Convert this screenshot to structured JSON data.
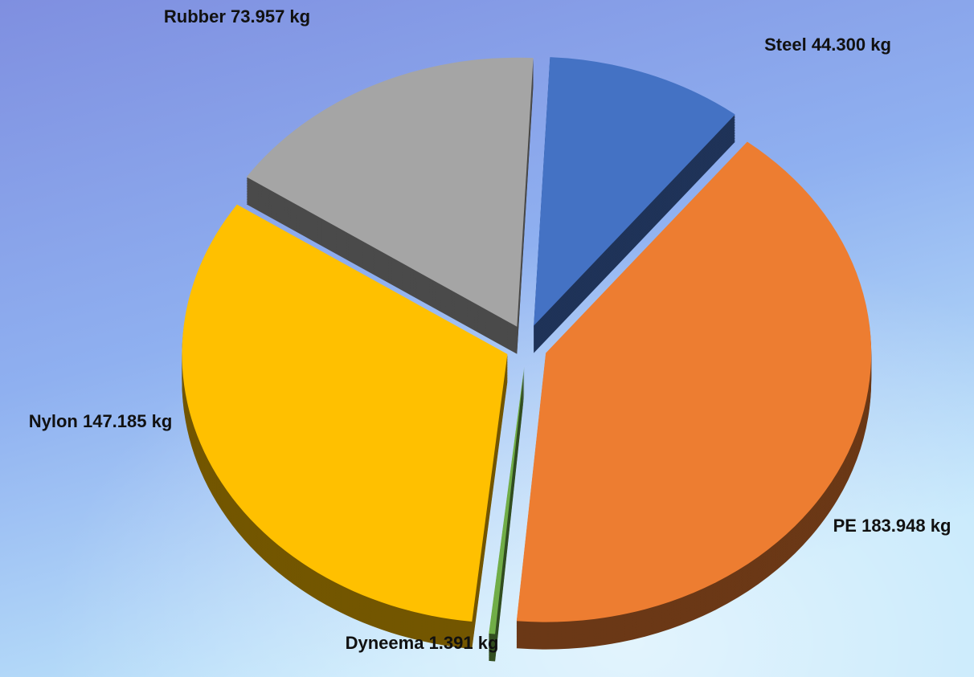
{
  "chart_data": {
    "type": "pie",
    "categories": [
      "Steel",
      "PE",
      "Dyneema",
      "Nylon",
      "Rubber"
    ],
    "values": [
      44.3,
      183.948,
      1.391,
      147.185,
      73.957
    ],
    "value_labels": [
      "44.300 kg",
      "183.948 kg",
      "1.391 kg",
      "147.185 kg",
      "73.957 kg"
    ],
    "colors": [
      "#4472c4",
      "#ed7d31",
      "#70ad47",
      "#ffc000",
      "#a5a5a5"
    ],
    "exploded": true,
    "three_d": true
  }
}
